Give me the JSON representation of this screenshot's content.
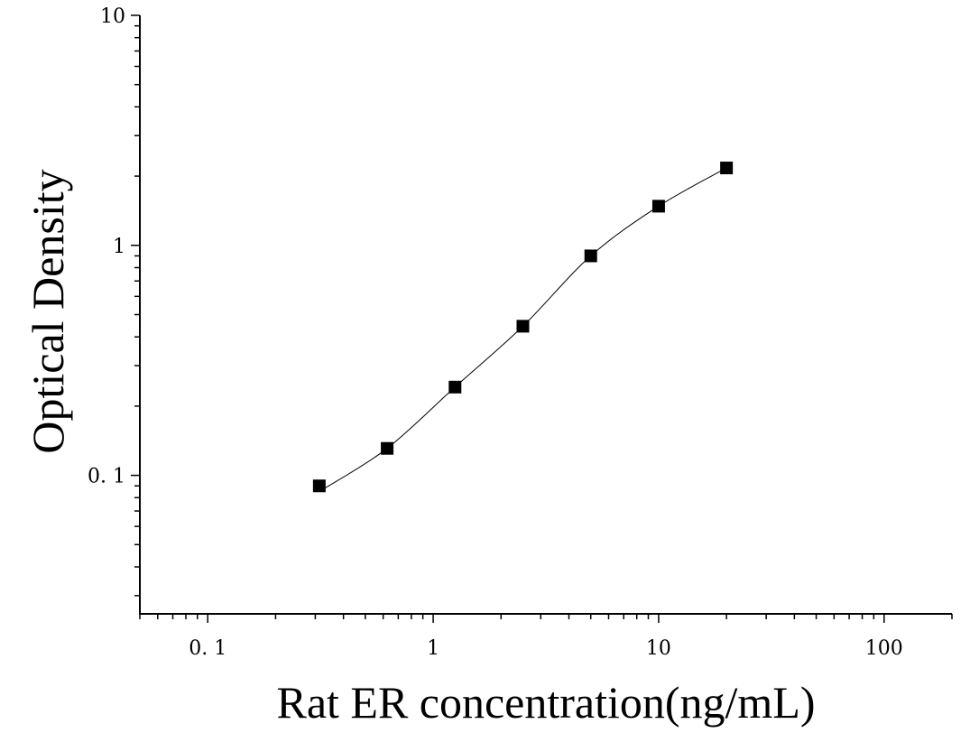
{
  "chart_data": {
    "type": "scatter",
    "title": "",
    "xlabel": "Rat ER concentration(ng/mL)",
    "ylabel": "Optical Density",
    "x_scale": "log",
    "y_scale": "log",
    "xlim": [
      0.05,
      200
    ],
    "ylim": [
      0.025,
      10
    ],
    "x_ticks": [
      {
        "value": 0.1,
        "label": "0. 1"
      },
      {
        "value": 1,
        "label": "1"
      },
      {
        "value": 10,
        "label": "10"
      },
      {
        "value": 100,
        "label": "100"
      }
    ],
    "y_ticks": [
      {
        "value": 0.1,
        "label": "0. 1"
      },
      {
        "value": 1,
        "label": "1"
      },
      {
        "value": 10,
        "label": "10"
      }
    ],
    "grid": false,
    "legend": "none",
    "series": [
      {
        "marker": "square",
        "color": "#000000",
        "x": [
          0.3125,
          0.625,
          1.25,
          2.5,
          5,
          10,
          20
        ],
        "y": [
          0.09,
          0.131,
          0.242,
          0.445,
          0.9,
          1.48,
          2.17
        ]
      }
    ],
    "fit_curve": {
      "color": "#000000"
    }
  }
}
